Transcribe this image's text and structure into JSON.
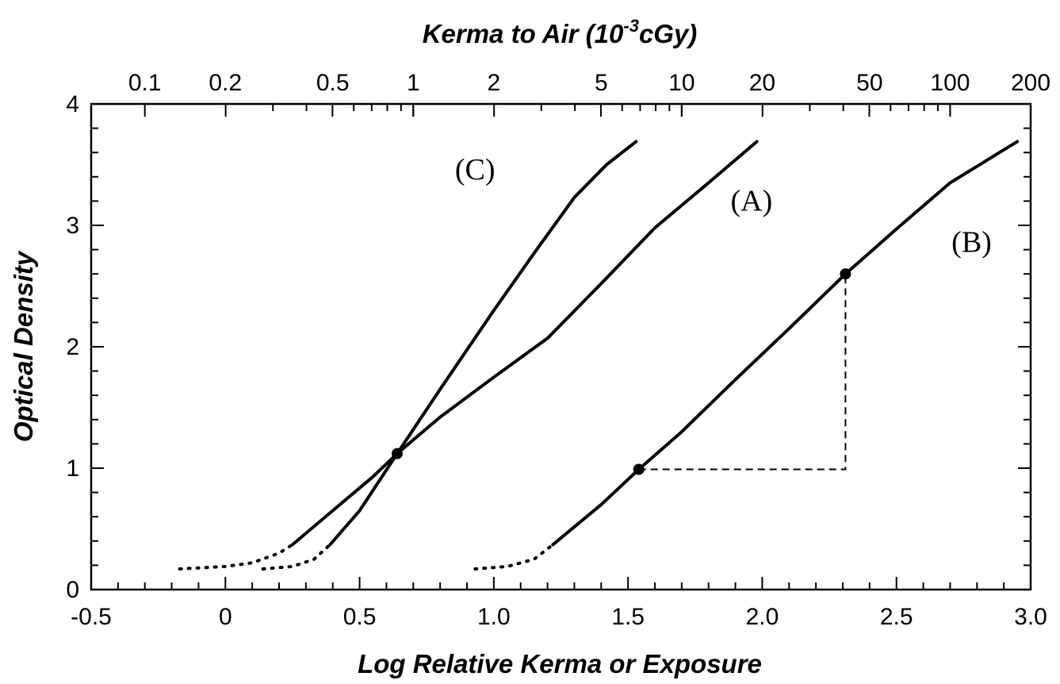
{
  "chart_data": {
    "type": "line",
    "xlabel": "Log Relative Kerma or Exposure",
    "ylabel": "Optical Density",
    "top_axis": {
      "label_main": "Kerma to Air  (10",
      "label_sup": "-3",
      "label_unit": "cGy)",
      "ticks": [
        {
          "label": "0.1",
          "at_x": -0.3
        },
        {
          "label": "0.2",
          "at_x": 0.0
        },
        {
          "label": "0.5",
          "at_x": 0.4
        },
        {
          "label": "1",
          "at_x": 0.7
        },
        {
          "label": "2",
          "at_x": 1.0
        },
        {
          "label": "5",
          "at_x": 1.4
        },
        {
          "label": "10",
          "at_x": 1.7
        },
        {
          "label": "20",
          "at_x": 2.0
        },
        {
          "label": "50",
          "at_x": 2.4
        },
        {
          "label": "100",
          "at_x": 2.7
        },
        {
          "label": "200",
          "at_x": 3.0
        }
      ]
    },
    "xlim": [
      -0.5,
      3.0
    ],
    "ylim": [
      0,
      4
    ],
    "x_ticks": [
      {
        "value": -0.5,
        "label": "-0.5"
      },
      {
        "value": 0.0,
        "label": "0"
      },
      {
        "value": 0.5,
        "label": "0.5"
      },
      {
        "value": 1.0,
        "label": "1.0"
      },
      {
        "value": 1.5,
        "label": "1.5"
      },
      {
        "value": 2.0,
        "label": "2.0"
      },
      {
        "value": 2.5,
        "label": "2.5"
      },
      {
        "value": 3.0,
        "label": "3.0"
      }
    ],
    "y_ticks": [
      {
        "value": 0,
        "label": "0"
      },
      {
        "value": 1,
        "label": "1"
      },
      {
        "value": 2,
        "label": "2"
      },
      {
        "value": 3,
        "label": "3"
      },
      {
        "value": 4,
        "label": "4"
      }
    ],
    "grid": false,
    "series": [
      {
        "name": "(A)",
        "solid": [
          [
            0.25,
            0.37
          ],
          [
            0.4,
            0.65
          ],
          [
            0.55,
            0.93
          ],
          [
            0.64,
            1.12
          ],
          [
            0.8,
            1.42
          ],
          [
            1.0,
            1.75
          ],
          [
            1.2,
            2.07
          ],
          [
            1.4,
            2.52
          ],
          [
            1.6,
            2.98
          ],
          [
            1.8,
            3.35
          ],
          [
            1.98,
            3.69
          ]
        ],
        "dotted": [
          [
            -0.17,
            0.17
          ],
          [
            0.0,
            0.19
          ],
          [
            0.1,
            0.22
          ],
          [
            0.2,
            0.3
          ],
          [
            0.25,
            0.37
          ]
        ]
      },
      {
        "name": "(B)",
        "solid": [
          [
            1.22,
            0.37
          ],
          [
            1.4,
            0.7
          ],
          [
            1.54,
            0.99
          ],
          [
            1.7,
            1.3
          ],
          [
            1.9,
            1.73
          ],
          [
            2.1,
            2.15
          ],
          [
            2.31,
            2.6
          ],
          [
            2.5,
            2.97
          ],
          [
            2.7,
            3.35
          ],
          [
            2.95,
            3.69
          ]
        ],
        "dotted": [
          [
            0.93,
            0.17
          ],
          [
            1.05,
            0.19
          ],
          [
            1.15,
            0.25
          ],
          [
            1.22,
            0.37
          ]
        ]
      },
      {
        "name": "(C)",
        "solid": [
          [
            0.39,
            0.37
          ],
          [
            0.5,
            0.65
          ],
          [
            0.64,
            1.12
          ],
          [
            0.8,
            1.65
          ],
          [
            1.0,
            2.3
          ],
          [
            1.15,
            2.77
          ],
          [
            1.3,
            3.23
          ],
          [
            1.42,
            3.5
          ],
          [
            1.53,
            3.69
          ]
        ],
        "dotted": [
          [
            0.14,
            0.17
          ],
          [
            0.25,
            0.19
          ],
          [
            0.33,
            0.25
          ],
          [
            0.39,
            0.37
          ]
        ]
      }
    ],
    "points": [
      [
        0.64,
        1.12
      ],
      [
        1.54,
        0.99
      ],
      [
        2.31,
        2.6
      ]
    ],
    "guide": [
      [
        1.54,
        0.99
      ],
      [
        2.31,
        0.99
      ],
      [
        2.31,
        2.6
      ]
    ],
    "labels": [
      {
        "text": "(C)",
        "x": 0.93,
        "y": 3.38
      },
      {
        "text": "(A)",
        "x": 1.96,
        "y": 3.12
      },
      {
        "text": "(B)",
        "x": 2.78,
        "y": 2.78
      }
    ]
  }
}
